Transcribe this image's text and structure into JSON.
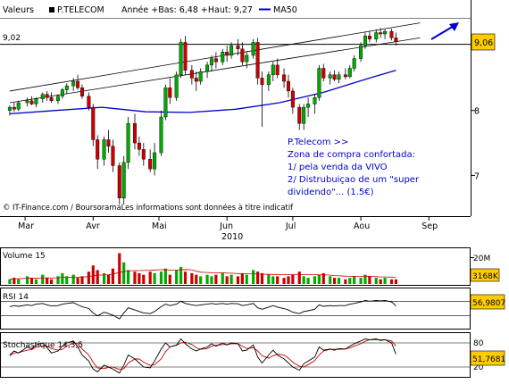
{
  "header": {
    "valeurs_label": "Valeurs",
    "ticker_label": "P.TELECOM",
    "annee_text": "Année +Bas: 6,48 +Haut: 9,27",
    "ma_label": "MA50"
  },
  "price_panel": {
    "level_label": "9,02",
    "last_price": "9,06",
    "copyright": "© IT-Finance.com / BoursoramaLes informations sont données à titre indicatif",
    "y_ticks": [
      "9",
      "8",
      "7"
    ],
    "annotation": [
      "P.Telecom >>",
      "Zona de compra confortada:",
      "1/  pela venda da VIVO",
      "2/ Distrubuiçao de um \"super",
      "dividendo\"... (1.5€)"
    ]
  },
  "x_axis": {
    "months": [
      "Mar",
      "Avr",
      "Mai",
      "Jun",
      "Jul",
      "Aou",
      "Sep"
    ],
    "year": "2010"
  },
  "volume_panel": {
    "label": "Volume 15",
    "tick_label": "20M",
    "last_value": "3168K"
  },
  "rsi_panel": {
    "label": "RSI 14",
    "last_value": "56,9807"
  },
  "stoch_panel": {
    "label": "Stochastique 14,3,5",
    "ticks": [
      "80",
      "20"
    ],
    "last_value": "51,7681"
  },
  "colors": {
    "up": "#00aa00",
    "down": "#cc0000",
    "ma50": "#0000cc",
    "annotation": "#0000cc",
    "last_price_box": "#ffcc00"
  },
  "chart_data": {
    "type": "candlestick",
    "title": "P.TELECOM",
    "y_range": [
      6.4,
      9.4
    ],
    "candles": [
      {
        "d": "2010-02-22",
        "o": 8.0,
        "h": 8.08,
        "l": 7.92,
        "c": 8.05
      },
      {
        "d": "2010-02-24",
        "o": 8.05,
        "h": 8.12,
        "l": 7.98,
        "c": 8.02
      },
      {
        "d": "2010-02-26",
        "o": 8.02,
        "h": 8.15,
        "l": 7.99,
        "c": 8.12
      },
      {
        "d": "2010-03-02",
        "o": 8.12,
        "h": 8.2,
        "l": 8.06,
        "c": 8.15
      },
      {
        "d": "2010-03-04",
        "o": 8.15,
        "h": 8.22,
        "l": 8.08,
        "c": 8.1
      },
      {
        "d": "2010-03-06",
        "o": 8.1,
        "h": 8.2,
        "l": 8.05,
        "c": 8.18
      },
      {
        "d": "2010-03-09",
        "o": 8.18,
        "h": 8.28,
        "l": 8.12,
        "c": 8.25
      },
      {
        "d": "2010-03-11",
        "o": 8.25,
        "h": 8.3,
        "l": 8.15,
        "c": 8.2
      },
      {
        "d": "2010-03-13",
        "o": 8.2,
        "h": 8.28,
        "l": 8.12,
        "c": 8.15
      },
      {
        "d": "2010-03-16",
        "o": 8.15,
        "h": 8.25,
        "l": 8.1,
        "c": 8.22
      },
      {
        "d": "2010-03-18",
        "o": 8.22,
        "h": 8.35,
        "l": 8.18,
        "c": 8.32
      },
      {
        "d": "2010-03-20",
        "o": 8.32,
        "h": 8.42,
        "l": 8.25,
        "c": 8.38
      },
      {
        "d": "2010-03-23",
        "o": 8.38,
        "h": 8.5,
        "l": 8.3,
        "c": 8.45
      },
      {
        "d": "2010-03-25",
        "o": 8.45,
        "h": 8.55,
        "l": 8.32,
        "c": 8.35
      },
      {
        "d": "2010-03-27",
        "o": 8.35,
        "h": 8.4,
        "l": 8.18,
        "c": 8.22
      },
      {
        "d": "2010-03-30",
        "o": 8.22,
        "h": 8.28,
        "l": 8.0,
        "c": 8.05
      },
      {
        "d": "2010-04-01",
        "o": 8.05,
        "h": 8.1,
        "l": 7.45,
        "c": 7.55
      },
      {
        "d": "2010-04-03",
        "o": 7.55,
        "h": 7.62,
        "l": 7.1,
        "c": 7.25
      },
      {
        "d": "2010-04-06",
        "o": 7.25,
        "h": 7.6,
        "l": 7.15,
        "c": 7.55
      },
      {
        "d": "2010-04-08",
        "o": 7.55,
        "h": 7.7,
        "l": 7.35,
        "c": 7.45
      },
      {
        "d": "2010-04-10",
        "o": 7.45,
        "h": 7.55,
        "l": 7.05,
        "c": 7.15
      },
      {
        "d": "2010-04-13",
        "o": 7.15,
        "h": 7.2,
        "l": 6.55,
        "c": 6.65
      },
      {
        "d": "2010-04-15",
        "o": 6.65,
        "h": 7.3,
        "l": 6.55,
        "c": 7.2
      },
      {
        "d": "2010-04-17",
        "o": 7.2,
        "h": 7.9,
        "l": 7.1,
        "c": 7.8
      },
      {
        "d": "2010-04-20",
        "o": 7.8,
        "h": 7.95,
        "l": 7.4,
        "c": 7.5
      },
      {
        "d": "2010-04-22",
        "o": 7.5,
        "h": 7.6,
        "l": 7.3,
        "c": 7.4
      },
      {
        "d": "2010-04-24",
        "o": 7.4,
        "h": 7.5,
        "l": 7.15,
        "c": 7.25
      },
      {
        "d": "2010-04-27",
        "o": 7.25,
        "h": 7.4,
        "l": 7.05,
        "c": 7.1
      },
      {
        "d": "2010-04-29",
        "o": 7.1,
        "h": 7.5,
        "l": 7.0,
        "c": 7.35
      },
      {
        "d": "2010-05-02",
        "o": 7.35,
        "h": 8.0,
        "l": 7.3,
        "c": 7.9
      },
      {
        "d": "2010-05-04",
        "o": 7.9,
        "h": 8.4,
        "l": 7.85,
        "c": 8.35
      },
      {
        "d": "2010-05-06",
        "o": 8.35,
        "h": 8.5,
        "l": 8.1,
        "c": 8.2
      },
      {
        "d": "2010-05-09",
        "o": 8.2,
        "h": 8.6,
        "l": 8.15,
        "c": 8.55
      },
      {
        "d": "2010-05-11",
        "o": 8.55,
        "h": 9.1,
        "l": 8.5,
        "c": 9.05
      },
      {
        "d": "2010-05-13",
        "o": 9.05,
        "h": 9.15,
        "l": 8.55,
        "c": 8.62
      },
      {
        "d": "2010-05-16",
        "o": 8.62,
        "h": 8.7,
        "l": 8.4,
        "c": 8.5
      },
      {
        "d": "2010-05-18",
        "o": 8.5,
        "h": 8.6,
        "l": 8.3,
        "c": 8.45
      },
      {
        "d": "2010-05-20",
        "o": 8.45,
        "h": 8.65,
        "l": 8.4,
        "c": 8.6
      },
      {
        "d": "2010-05-23",
        "o": 8.6,
        "h": 8.75,
        "l": 8.5,
        "c": 8.7
      },
      {
        "d": "2010-05-25",
        "o": 8.7,
        "h": 8.85,
        "l": 8.6,
        "c": 8.8
      },
      {
        "d": "2010-05-27",
        "o": 8.8,
        "h": 8.9,
        "l": 8.65,
        "c": 8.75
      },
      {
        "d": "2010-05-30",
        "o": 8.75,
        "h": 8.95,
        "l": 8.7,
        "c": 8.9
      },
      {
        "d": "2010-06-01",
        "o": 8.9,
        "h": 9.0,
        "l": 8.75,
        "c": 8.85
      },
      {
        "d": "2010-06-03",
        "o": 8.85,
        "h": 9.05,
        "l": 8.8,
        "c": 9.0
      },
      {
        "d": "2010-06-06",
        "o": 9.0,
        "h": 9.1,
        "l": 8.85,
        "c": 8.95
      },
      {
        "d": "2010-06-08",
        "o": 8.95,
        "h": 9.05,
        "l": 8.7,
        "c": 8.75
      },
      {
        "d": "2010-06-10",
        "o": 8.75,
        "h": 8.9,
        "l": 8.65,
        "c": 8.85
      },
      {
        "d": "2010-06-13",
        "o": 8.85,
        "h": 9.1,
        "l": 8.8,
        "c": 9.05
      },
      {
        "d": "2010-06-15",
        "o": 9.05,
        "h": 9.12,
        "l": 8.4,
        "c": 8.5
      },
      {
        "d": "2010-06-17",
        "o": 8.5,
        "h": 8.6,
        "l": 7.75,
        "c": 8.4
      },
      {
        "d": "2010-06-20",
        "o": 8.4,
        "h": 8.6,
        "l": 8.3,
        "c": 8.55
      },
      {
        "d": "2010-06-22",
        "o": 8.55,
        "h": 8.75,
        "l": 8.45,
        "c": 8.7
      },
      {
        "d": "2010-06-24",
        "o": 8.7,
        "h": 8.8,
        "l": 8.5,
        "c": 8.55
      },
      {
        "d": "2010-06-27",
        "o": 8.55,
        "h": 8.65,
        "l": 8.35,
        "c": 8.45
      },
      {
        "d": "2010-06-29",
        "o": 8.45,
        "h": 8.55,
        "l": 8.2,
        "c": 8.3
      },
      {
        "d": "2010-07-01",
        "o": 8.3,
        "h": 8.35,
        "l": 7.95,
        "c": 8.05
      },
      {
        "d": "2010-07-04",
        "o": 8.05,
        "h": 8.1,
        "l": 7.7,
        "c": 7.8
      },
      {
        "d": "2010-07-06",
        "o": 7.8,
        "h": 8.1,
        "l": 7.7,
        "c": 8.05
      },
      {
        "d": "2010-07-08",
        "o": 8.05,
        "h": 8.2,
        "l": 7.9,
        "c": 8.1
      },
      {
        "d": "2010-07-11",
        "o": 8.1,
        "h": 8.25,
        "l": 7.95,
        "c": 8.2
      },
      {
        "d": "2010-07-13",
        "o": 8.2,
        "h": 8.7,
        "l": 8.15,
        "c": 8.65
      },
      {
        "d": "2010-07-15",
        "o": 8.65,
        "h": 8.72,
        "l": 8.45,
        "c": 8.5
      },
      {
        "d": "2010-07-18",
        "o": 8.5,
        "h": 8.6,
        "l": 8.4,
        "c": 8.55
      },
      {
        "d": "2010-07-20",
        "o": 8.55,
        "h": 8.62,
        "l": 8.45,
        "c": 8.48
      },
      {
        "d": "2010-07-22",
        "o": 8.48,
        "h": 8.6,
        "l": 8.42,
        "c": 8.55
      },
      {
        "d": "2010-07-25",
        "o": 8.55,
        "h": 8.65,
        "l": 8.48,
        "c": 8.52
      },
      {
        "d": "2010-07-27",
        "o": 8.52,
        "h": 8.7,
        "l": 8.5,
        "c": 8.65
      },
      {
        "d": "2010-07-29",
        "o": 8.65,
        "h": 8.85,
        "l": 8.6,
        "c": 8.8
      },
      {
        "d": "2010-08-01",
        "o": 8.8,
        "h": 9.05,
        "l": 8.75,
        "c": 9.0
      },
      {
        "d": "2010-08-03",
        "o": 9.0,
        "h": 9.2,
        "l": 8.95,
        "c": 9.15
      },
      {
        "d": "2010-08-05",
        "o": 9.15,
        "h": 9.22,
        "l": 9.05,
        "c": 9.1
      },
      {
        "d": "2010-08-08",
        "o": 9.1,
        "h": 9.25,
        "l": 9.05,
        "c": 9.2
      },
      {
        "d": "2010-08-10",
        "o": 9.2,
        "h": 9.27,
        "l": 9.12,
        "c": 9.18
      },
      {
        "d": "2010-08-12",
        "o": 9.18,
        "h": 9.25,
        "l": 9.1,
        "c": 9.22
      },
      {
        "d": "2010-08-15",
        "o": 9.22,
        "h": 9.26,
        "l": 9.08,
        "c": 9.12
      },
      {
        "d": "2010-08-17",
        "o": 9.12,
        "h": 9.2,
        "l": 9.0,
        "c": 9.06
      }
    ],
    "ma50": [
      {
        "d": "2010-02-22",
        "v": 7.95
      },
      {
        "d": "2010-03-15",
        "v": 8.0
      },
      {
        "d": "2010-04-05",
        "v": 8.05
      },
      {
        "d": "2010-04-25",
        "v": 7.98
      },
      {
        "d": "2010-05-15",
        "v": 7.97
      },
      {
        "d": "2010-06-05",
        "v": 8.02
      },
      {
        "d": "2010-06-25",
        "v": 8.12
      },
      {
        "d": "2010-07-15",
        "v": 8.28
      },
      {
        "d": "2010-08-05",
        "v": 8.5
      },
      {
        "d": "2010-08-17",
        "v": 8.62
      }
    ],
    "channel_lines": [
      {
        "from": {
          "d": "2010-02-22",
          "v": 8.3
        },
        "to": {
          "d": "2010-08-28",
          "v": 9.35
        }
      },
      {
        "from": {
          "d": "2010-02-22",
          "v": 8.12
        },
        "to": {
          "d": "2010-08-28",
          "v": 9.12
        }
      }
    ],
    "resistance": 9.02,
    "volume": [
      3,
      4,
      3,
      5,
      4,
      3,
      6,
      4,
      3,
      5,
      7,
      5,
      6,
      4,
      5,
      8,
      12,
      9,
      7,
      6,
      10,
      20,
      14,
      9,
      8,
      7,
      6,
      8,
      7,
      8,
      10,
      6,
      9,
      11,
      8,
      7,
      6,
      5,
      6,
      5,
      6,
      7,
      5,
      6,
      5,
      7,
      6,
      9,
      8,
      7,
      6,
      5,
      5,
      4,
      5,
      6,
      8,
      5,
      4,
      5,
      6,
      7,
      5,
      4,
      4,
      3,
      4,
      5,
      4,
      6,
      5,
      4,
      3,
      4,
      3,
      3
    ],
    "rsi": [
      55,
      58,
      56,
      60,
      58,
      62,
      64,
      60,
      57,
      58,
      62,
      64,
      66,
      60,
      55,
      50,
      38,
      30,
      40,
      36,
      32,
      22,
      38,
      52,
      46,
      42,
      38,
      36,
      42,
      55,
      62,
      58,
      62,
      70,
      64,
      60,
      58,
      60,
      62,
      64,
      62,
      64,
      62,
      64,
      63,
      58,
      60,
      64,
      52,
      48,
      54,
      58,
      54,
      50,
      46,
      40,
      36,
      42,
      44,
      48,
      60,
      56,
      58,
      57,
      58,
      58,
      62,
      64,
      68,
      72,
      70,
      72,
      71,
      72,
      68,
      57
    ],
    "stoch_k": [
      50,
      60,
      55,
      70,
      65,
      75,
      80,
      68,
      55,
      60,
      72,
      80,
      85,
      70,
      50,
      35,
      15,
      8,
      25,
      20,
      15,
      5,
      25,
      50,
      40,
      30,
      20,
      18,
      35,
      65,
      80,
      70,
      75,
      90,
      78,
      65,
      60,
      65,
      70,
      78,
      72,
      80,
      75,
      80,
      78,
      60,
      62,
      75,
      45,
      30,
      50,
      62,
      50,
      40,
      30,
      20,
      12,
      28,
      35,
      45,
      70,
      62,
      65,
      62,
      66,
      65,
      72,
      78,
      85,
      90,
      88,
      90,
      86,
      88,
      80,
      52
    ],
    "stoch_d": [
      48,
      55,
      56,
      62,
      63,
      70,
      73,
      72,
      66,
      62,
      64,
      72,
      80,
      78,
      65,
      50,
      32,
      18,
      16,
      19,
      20,
      14,
      16,
      30,
      40,
      40,
      32,
      24,
      26,
      40,
      58,
      70,
      74,
      80,
      82,
      76,
      68,
      64,
      66,
      72,
      74,
      76,
      76,
      78,
      78,
      72,
      66,
      68,
      60,
      48,
      42,
      48,
      52,
      50,
      42,
      32,
      22,
      20,
      26,
      36,
      50,
      60,
      64,
      64,
      64,
      65,
      68,
      72,
      78,
      84,
      88,
      88,
      88,
      88,
      85,
      72
    ],
    "xaxis_months": [
      "2010-03-01",
      "2010-04-01",
      "2010-05-01",
      "2010-06-01",
      "2010-07-01",
      "2010-08-01",
      "2010-09-01"
    ],
    "x_range": [
      "2010-02-20",
      "2010-09-18"
    ],
    "rsi_levels": [
      70,
      30
    ],
    "stoch_levels": [
      80,
      20
    ]
  }
}
